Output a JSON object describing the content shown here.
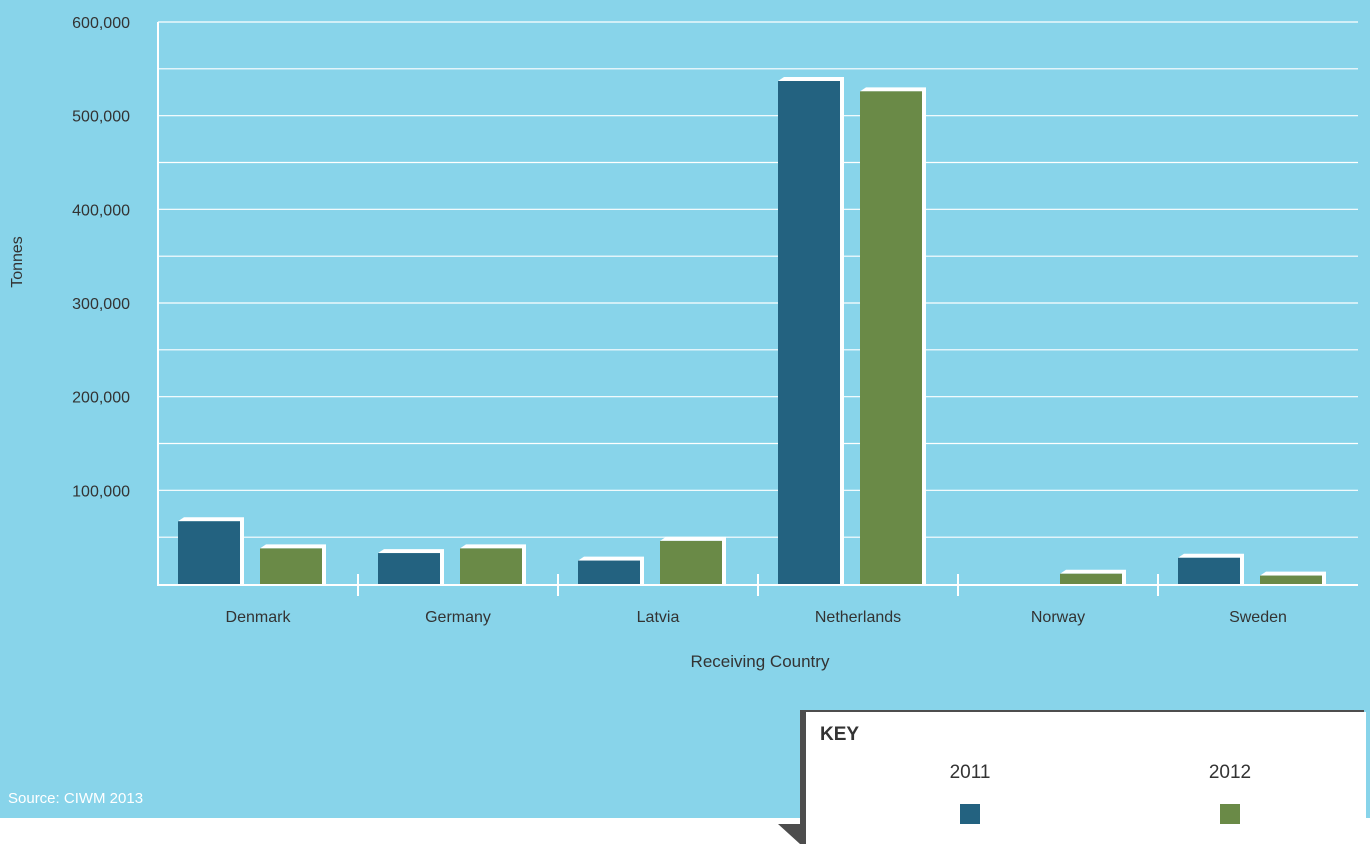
{
  "chart_data": {
    "type": "bar",
    "title": "",
    "xlabel": "Receiving Country",
    "ylabel": "Tonnes",
    "ylim": [
      0,
      600000
    ],
    "yticks": [
      100000,
      200000,
      300000,
      400000,
      500000,
      600000
    ],
    "ytick_labels": [
      "100,000",
      "200,000",
      "300,000",
      "400,000",
      "500,000",
      "600,000"
    ],
    "grid": true,
    "categories": [
      "Denmark",
      "Germany",
      "Latvia",
      "Netherlands",
      "Norway",
      "Sweden"
    ],
    "series": [
      {
        "name": "2011",
        "color": "#236280",
        "values": [
          67000,
          33000,
          25000,
          537000,
          0,
          28000
        ]
      },
      {
        "name": "2012",
        "color": "#6a8a47",
        "values": [
          38000,
          38000,
          46000,
          526000,
          11000,
          9000
        ]
      }
    ]
  },
  "key": {
    "title": "KEY"
  },
  "source": "Source: CIWM 2013",
  "colors": {
    "background": "#88d4ea",
    "gridline": "#ffffff",
    "bar_edge": "#ffffff"
  }
}
